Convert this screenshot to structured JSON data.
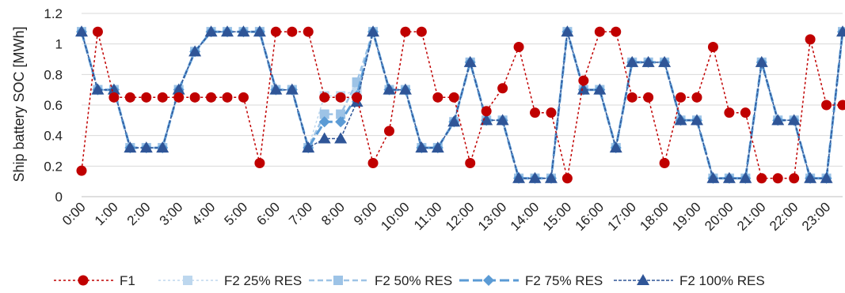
{
  "chart_data": {
    "type": "line",
    "ylabel": "Ship battery SOC [MWh]",
    "xlabel": "",
    "ylim": [
      0,
      1.2
    ],
    "yticks": [
      0,
      0.2,
      0.4,
      0.6,
      0.8,
      1,
      1.2
    ],
    "ytick_labels": [
      "0",
      "0.2",
      "0.4",
      "0.6",
      "0.8",
      "1",
      "1.2"
    ],
    "grid": "horizontal",
    "legend_position": "bottom",
    "x_tick_labels": [
      "0:00",
      "1:00",
      "2:00",
      "3:00",
      "4:00",
      "5:00",
      "6:00",
      "7:00",
      "8:00",
      "9:00",
      "10:00",
      "11:00",
      "12:00",
      "13:00",
      "14:00",
      "15:00",
      "16:00",
      "17:00",
      "18:00",
      "19:00",
      "20:00",
      "21:00",
      "22:00",
      "23:00"
    ],
    "x_step_hours": 0.5,
    "series": [
      {
        "name": "F1",
        "color": "#c00000",
        "marker": "circle",
        "line": "dotted",
        "values": [
          0.17,
          1.08,
          0.65,
          0.65,
          0.65,
          0.65,
          0.65,
          0.65,
          0.65,
          0.65,
          0.65,
          0.22,
          1.08,
          1.08,
          1.08,
          0.65,
          0.65,
          0.65,
          0.22,
          0.43,
          1.08,
          1.08,
          0.65,
          0.65,
          0.22,
          0.56,
          0.71,
          0.98,
          0.55,
          0.55,
          0.12,
          0.76,
          1.08,
          1.08,
          0.65,
          0.65,
          0.22,
          0.65,
          0.65,
          0.98,
          0.55,
          0.55,
          0.12,
          0.12,
          0.12,
          1.03,
          0.6,
          0.6
        ]
      },
      {
        "name": "F2 25% RES",
        "color": "#bdd7ee",
        "marker": "square",
        "line": "dotted",
        "values": [
          1.08,
          0.7,
          0.7,
          0.32,
          0.32,
          0.32,
          0.7,
          0.95,
          1.08,
          1.08,
          1.08,
          1.08,
          0.7,
          0.7,
          0.32,
          0.66,
          0.66,
          0.7,
          1.08,
          0.7,
          0.7,
          0.32,
          0.32,
          0.49,
          0.88,
          0.5,
          0.5,
          0.12,
          0.12,
          0.12,
          1.08,
          0.7,
          0.7,
          0.32,
          0.88,
          0.88,
          0.88,
          0.5,
          0.5,
          0.12,
          0.12,
          0.12,
          0.88,
          0.5,
          0.5,
          0.12,
          0.12,
          1.08
        ]
      },
      {
        "name": "F2 50% RES",
        "color": "#9dc3e6",
        "marker": "square",
        "line": "dashed",
        "values": [
          1.08,
          0.7,
          0.7,
          0.32,
          0.32,
          0.32,
          0.7,
          0.95,
          1.08,
          1.08,
          1.08,
          1.08,
          0.7,
          0.7,
          0.32,
          0.54,
          0.54,
          0.75,
          1.08,
          0.7,
          0.7,
          0.32,
          0.32,
          0.49,
          0.88,
          0.5,
          0.5,
          0.12,
          0.12,
          0.12,
          1.08,
          0.7,
          0.7,
          0.32,
          0.88,
          0.88,
          0.88,
          0.5,
          0.5,
          0.12,
          0.12,
          0.12,
          0.88,
          0.5,
          0.5,
          0.12,
          0.12,
          1.08
        ]
      },
      {
        "name": "F2 75% RES",
        "color": "#5b9bd5",
        "marker": "diamond",
        "line": "longdash",
        "values": [
          1.08,
          0.7,
          0.7,
          0.32,
          0.32,
          0.32,
          0.7,
          0.95,
          1.08,
          1.08,
          1.08,
          1.08,
          0.7,
          0.7,
          0.32,
          0.49,
          0.49,
          0.66,
          1.08,
          0.7,
          0.7,
          0.32,
          0.32,
          0.49,
          0.88,
          0.5,
          0.5,
          0.12,
          0.12,
          0.12,
          1.08,
          0.7,
          0.7,
          0.32,
          0.88,
          0.88,
          0.88,
          0.5,
          0.5,
          0.12,
          0.12,
          0.12,
          0.88,
          0.5,
          0.5,
          0.12,
          0.12,
          1.08
        ]
      },
      {
        "name": "F2 100% RES",
        "color": "#2f5597",
        "marker": "triangle",
        "line": "dashed-fine",
        "values": [
          1.08,
          0.7,
          0.7,
          0.32,
          0.32,
          0.32,
          0.7,
          0.95,
          1.08,
          1.08,
          1.08,
          1.08,
          0.7,
          0.7,
          0.32,
          0.38,
          0.38,
          0.62,
          1.08,
          0.7,
          0.7,
          0.32,
          0.32,
          0.49,
          0.88,
          0.5,
          0.5,
          0.12,
          0.12,
          0.12,
          1.08,
          0.7,
          0.7,
          0.32,
          0.88,
          0.88,
          0.88,
          0.5,
          0.5,
          0.12,
          0.12,
          0.12,
          0.88,
          0.5,
          0.5,
          0.12,
          0.12,
          1.08
        ]
      }
    ]
  }
}
